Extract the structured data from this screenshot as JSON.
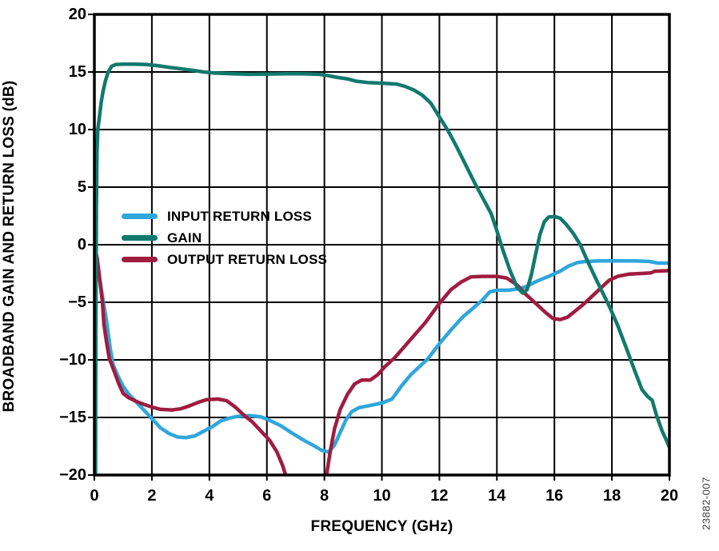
{
  "figure": {
    "watermark": "23882-007",
    "background": "#ffffff",
    "frame_color": "#000000",
    "grid_color": "#000000"
  },
  "chart_data": {
    "type": "line",
    "title": "",
    "xlabel": "FREQUENCY (GHz)",
    "ylabel": "BROADBAND GAIN AND RETURN LOSS (dB)",
    "xlim": [
      0,
      20
    ],
    "ylim": [
      -20,
      20
    ],
    "grid": true,
    "legend_position": "inside-left-middle",
    "x_ticks": [
      0,
      2,
      4,
      6,
      8,
      10,
      12,
      14,
      16,
      18,
      20
    ],
    "x_tick_labels": [
      "0",
      "2",
      "4",
      "6",
      "8",
      "10",
      "12",
      "14",
      "16",
      "18",
      "20"
    ],
    "y_ticks": [
      20,
      15,
      10,
      5,
      0,
      -5,
      -10,
      -15,
      -20
    ],
    "y_tick_labels": [
      "20",
      "15",
      "10",
      "5",
      "0",
      "−5",
      "−10",
      "−15",
      "−20"
    ],
    "draw_order": [
      0,
      2,
      1
    ],
    "series": [
      {
        "name": "INPUT RETURN LOSS",
        "color": "#2fa6dc",
        "points": [
          [
            0,
            0
          ],
          [
            0.1,
            -1.4
          ],
          [
            0.2,
            -3.2
          ],
          [
            0.3,
            -4.8
          ],
          [
            0.42,
            -6.6
          ],
          [
            0.55,
            -9.0
          ],
          [
            0.65,
            -10.4
          ],
          [
            0.8,
            -11.3
          ],
          [
            1.0,
            -12.3
          ],
          [
            1.2,
            -13.0
          ],
          [
            1.4,
            -13.5
          ],
          [
            1.7,
            -14.3
          ],
          [
            2.0,
            -15.1
          ],
          [
            2.3,
            -15.9
          ],
          [
            2.6,
            -16.4
          ],
          [
            2.9,
            -16.7
          ],
          [
            3.2,
            -16.75
          ],
          [
            3.5,
            -16.6
          ],
          [
            3.8,
            -16.2
          ],
          [
            4.1,
            -15.8
          ],
          [
            4.4,
            -15.3
          ],
          [
            4.7,
            -15.05
          ],
          [
            5.0,
            -14.9
          ],
          [
            5.4,
            -14.85
          ],
          [
            5.8,
            -14.95
          ],
          [
            6.1,
            -15.25
          ],
          [
            6.5,
            -15.75
          ],
          [
            6.9,
            -16.4
          ],
          [
            7.3,
            -17.0
          ],
          [
            7.6,
            -17.4
          ],
          [
            7.9,
            -17.85
          ],
          [
            8.15,
            -18.0
          ],
          [
            8.35,
            -17.4
          ],
          [
            8.55,
            -16.3
          ],
          [
            8.75,
            -15.2
          ],
          [
            8.95,
            -14.5
          ],
          [
            9.2,
            -14.15
          ],
          [
            9.6,
            -13.95
          ],
          [
            10.0,
            -13.75
          ],
          [
            10.35,
            -13.4
          ],
          [
            10.7,
            -12.2
          ],
          [
            11.0,
            -11.3
          ],
          [
            11.3,
            -10.6
          ],
          [
            11.6,
            -9.9
          ],
          [
            12.0,
            -8.6
          ],
          [
            12.4,
            -7.4
          ],
          [
            12.8,
            -6.3
          ],
          [
            13.2,
            -5.45
          ],
          [
            13.5,
            -4.8
          ],
          [
            13.75,
            -4.1
          ],
          [
            14.0,
            -3.95
          ],
          [
            14.4,
            -3.95
          ],
          [
            14.7,
            -3.85
          ],
          [
            15.0,
            -3.65
          ],
          [
            15.4,
            -3.15
          ],
          [
            15.8,
            -2.75
          ],
          [
            16.2,
            -2.3
          ],
          [
            16.5,
            -1.85
          ],
          [
            16.8,
            -1.55
          ],
          [
            17.1,
            -1.45
          ],
          [
            17.6,
            -1.4
          ],
          [
            18.2,
            -1.4
          ],
          [
            18.8,
            -1.4
          ],
          [
            19.3,
            -1.45
          ],
          [
            19.6,
            -1.6
          ],
          [
            20,
            -1.6
          ]
        ]
      },
      {
        "name": "GAIN",
        "color": "#12796d",
        "points": [
          [
            0.04,
            -20
          ],
          [
            0.05,
            -8
          ],
          [
            0.07,
            3
          ],
          [
            0.09,
            8
          ],
          [
            0.12,
            10
          ],
          [
            0.18,
            11.2
          ],
          [
            0.24,
            12.4
          ],
          [
            0.3,
            13.3
          ],
          [
            0.38,
            14.2
          ],
          [
            0.48,
            15.0
          ],
          [
            0.6,
            15.5
          ],
          [
            0.75,
            15.65
          ],
          [
            1.0,
            15.68
          ],
          [
            1.4,
            15.68
          ],
          [
            1.8,
            15.65
          ],
          [
            2.2,
            15.55
          ],
          [
            2.6,
            15.4
          ],
          [
            3.0,
            15.28
          ],
          [
            3.4,
            15.15
          ],
          [
            3.8,
            15.0
          ],
          [
            4.2,
            14.9
          ],
          [
            4.8,
            14.85
          ],
          [
            5.4,
            14.8
          ],
          [
            6.0,
            14.82
          ],
          [
            6.6,
            14.85
          ],
          [
            7.2,
            14.85
          ],
          [
            7.8,
            14.8
          ],
          [
            8.1,
            14.7
          ],
          [
            8.4,
            14.55
          ],
          [
            8.8,
            14.4
          ],
          [
            9.1,
            14.2
          ],
          [
            9.5,
            14.08
          ],
          [
            10.0,
            14.03
          ],
          [
            10.5,
            13.95
          ],
          [
            10.8,
            13.75
          ],
          [
            11.1,
            13.45
          ],
          [
            11.4,
            13.0
          ],
          [
            11.7,
            12.3
          ],
          [
            12.0,
            11.1
          ],
          [
            12.3,
            9.9
          ],
          [
            12.6,
            8.5
          ],
          [
            12.9,
            7.0
          ],
          [
            13.2,
            5.5
          ],
          [
            13.5,
            4.1
          ],
          [
            13.8,
            2.7
          ],
          [
            14.0,
            1.2
          ],
          [
            14.2,
            -0.4
          ],
          [
            14.45,
            -2.2
          ],
          [
            14.7,
            -3.7
          ],
          [
            14.9,
            -4.2
          ],
          [
            15.05,
            -3.9
          ],
          [
            15.2,
            -2.6
          ],
          [
            15.35,
            -0.8
          ],
          [
            15.5,
            0.9
          ],
          [
            15.65,
            2.0
          ],
          [
            15.8,
            2.4
          ],
          [
            16.0,
            2.45
          ],
          [
            16.2,
            2.3
          ],
          [
            16.4,
            1.8
          ],
          [
            16.65,
            1.0
          ],
          [
            16.9,
            0.0
          ],
          [
            17.15,
            -1.4
          ],
          [
            17.45,
            -3.0
          ],
          [
            17.9,
            -5.3
          ],
          [
            18.2,
            -7.0
          ],
          [
            18.55,
            -9.3
          ],
          [
            18.8,
            -11.0
          ],
          [
            19.05,
            -12.6
          ],
          [
            19.25,
            -13.2
          ],
          [
            19.4,
            -13.5
          ],
          [
            19.55,
            -14.8
          ],
          [
            19.75,
            -16.2
          ],
          [
            19.9,
            -17.0
          ],
          [
            20,
            -17.6
          ]
        ]
      },
      {
        "name": "OUTPUT RETURN LOSS",
        "color": "#a01c40",
        "points": [
          [
            0,
            0
          ],
          [
            0.1,
            -1.2
          ],
          [
            0.2,
            -3.3
          ],
          [
            0.28,
            -5.0
          ],
          [
            0.33,
            -6.9
          ],
          [
            0.42,
            -8.4
          ],
          [
            0.52,
            -9.9
          ],
          [
            0.6,
            -10.4
          ],
          [
            0.72,
            -11.2
          ],
          [
            0.85,
            -12.1
          ],
          [
            1.0,
            -12.9
          ],
          [
            1.2,
            -13.3
          ],
          [
            1.45,
            -13.6
          ],
          [
            1.7,
            -13.85
          ],
          [
            2.0,
            -14.1
          ],
          [
            2.3,
            -14.3
          ],
          [
            2.7,
            -14.35
          ],
          [
            3.0,
            -14.25
          ],
          [
            3.3,
            -14.0
          ],
          [
            3.6,
            -13.7
          ],
          [
            3.9,
            -13.45
          ],
          [
            4.3,
            -13.4
          ],
          [
            4.6,
            -13.55
          ],
          [
            4.9,
            -14.1
          ],
          [
            5.2,
            -14.8
          ],
          [
            5.5,
            -15.4
          ],
          [
            5.8,
            -16.2
          ],
          [
            6.1,
            -17.0
          ],
          [
            6.35,
            -18.0
          ],
          [
            6.55,
            -19.2
          ],
          [
            6.7,
            -20.4
          ],
          [
            8.05,
            -20.4
          ],
          [
            8.2,
            -18.0
          ],
          [
            8.35,
            -16.0
          ],
          [
            8.55,
            -14.3
          ],
          [
            8.8,
            -13.0
          ],
          [
            9.05,
            -12.1
          ],
          [
            9.3,
            -11.75
          ],
          [
            9.6,
            -11.75
          ],
          [
            9.85,
            -11.3
          ],
          [
            10.1,
            -10.6
          ],
          [
            10.45,
            -9.8
          ],
          [
            10.8,
            -8.8
          ],
          [
            11.15,
            -7.8
          ],
          [
            11.5,
            -6.8
          ],
          [
            12.0,
            -5.1
          ],
          [
            12.4,
            -3.9
          ],
          [
            12.75,
            -3.25
          ],
          [
            13.1,
            -2.8
          ],
          [
            13.5,
            -2.75
          ],
          [
            14.0,
            -2.75
          ],
          [
            14.35,
            -2.9
          ],
          [
            14.7,
            -3.5
          ],
          [
            15.0,
            -4.3
          ],
          [
            15.35,
            -5.1
          ],
          [
            15.7,
            -5.9
          ],
          [
            15.95,
            -6.4
          ],
          [
            16.2,
            -6.5
          ],
          [
            16.45,
            -6.3
          ],
          [
            16.7,
            -5.8
          ],
          [
            17.0,
            -5.2
          ],
          [
            17.3,
            -4.5
          ],
          [
            17.6,
            -3.8
          ],
          [
            17.9,
            -3.1
          ],
          [
            18.2,
            -2.75
          ],
          [
            18.6,
            -2.55
          ],
          [
            19.0,
            -2.5
          ],
          [
            19.35,
            -2.45
          ],
          [
            19.5,
            -2.3
          ],
          [
            20,
            -2.25
          ]
        ]
      }
    ]
  }
}
